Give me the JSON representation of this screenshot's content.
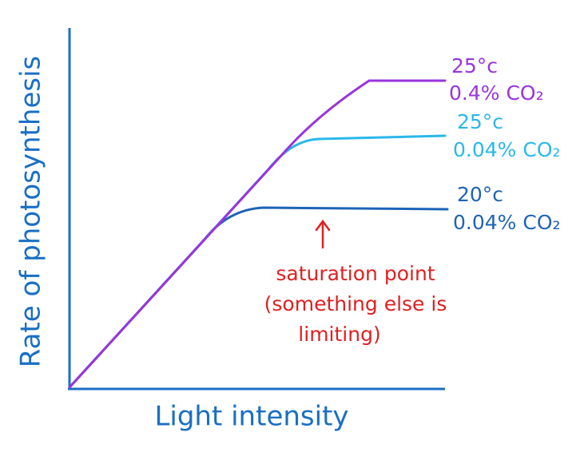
{
  "axes": {
    "y_label": "Rate of photosynthesis",
    "x_label": "Light intensity"
  },
  "curves": [
    {
      "label_lines": [
        "25°c",
        "0.4% CO₂"
      ]
    },
    {
      "label_lines": [
        "25°c",
        "0.04% CO₂"
      ]
    },
    {
      "label_lines": [
        "20°c",
        "0.04% CO₂"
      ]
    }
  ],
  "annotation": {
    "lines": [
      "saturation point",
      "(something else is",
      "limiting)"
    ]
  }
}
